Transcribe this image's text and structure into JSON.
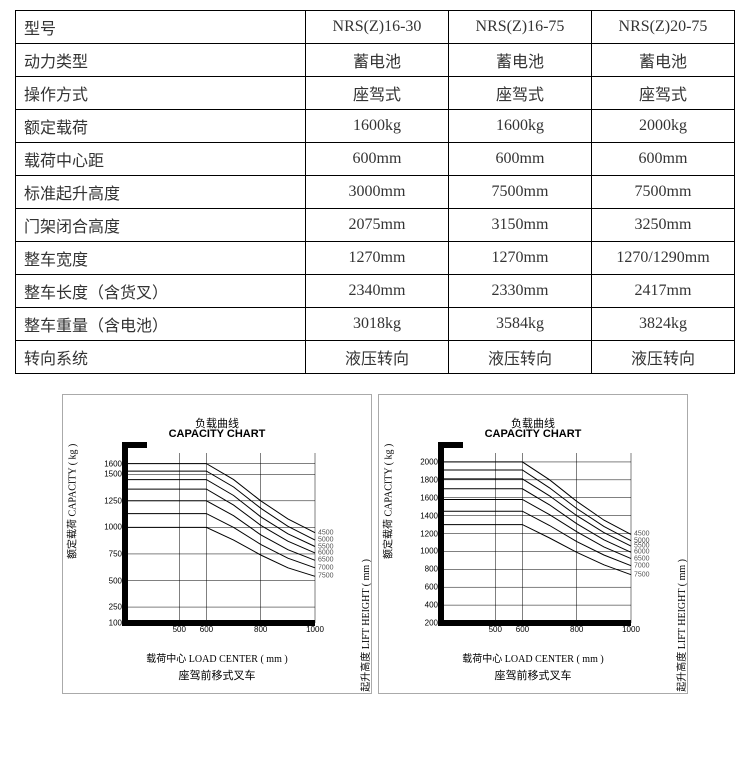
{
  "table": {
    "headers": [
      "型号",
      "NRS(Z)16-30",
      "NRS(Z)16-75",
      "NRS(Z)20-75"
    ],
    "rows": [
      {
        "label": "动力类型",
        "v1": "蓄电池",
        "v2": "蓄电池",
        "v3": "蓄电池"
      },
      {
        "label": "操作方式",
        "v1": "座驾式",
        "v2": "座驾式",
        "v3": "座驾式"
      },
      {
        "label": "额定载荷",
        "v1": "1600kg",
        "v2": "1600kg",
        "v3": "2000kg"
      },
      {
        "label": "载荷中心距",
        "v1": "600mm",
        "v2": "600mm",
        "v3": "600mm"
      },
      {
        "label": "标准起升高度",
        "v1": "3000mm",
        "v2": "7500mm",
        "v3": "7500mm"
      },
      {
        "label": "门架闭合高度",
        "v1": "2075mm",
        "v2": "3150mm",
        "v3": "3250mm"
      },
      {
        "label": "整车宽度",
        "v1": "1270mm",
        "v2": "1270mm",
        "v3": "1270/1290mm"
      },
      {
        "label": "整车长度（含货叉）",
        "v1": "2340mm",
        "v2": "2330mm",
        "v3": "2417mm"
      },
      {
        "label": "整车重量（含电池）",
        "v1": "3018kg",
        "v2": "3584kg",
        "v3": "3824kg"
      },
      {
        "label": "转向系统",
        "v1": "液压转向",
        "v2": "液压转向",
        "v3": "液压转向"
      }
    ]
  },
  "chart_left": {
    "type": "line",
    "title_cn": "负载曲线",
    "title_en": "CAPACITY CHART",
    "y_label": "额定载荷 CAPACITY ( kg )",
    "y2_label": "起升高度 LIFT HEIGHT ( mm )",
    "x_label": "载荷中心 LOAD CENTER ( mm )",
    "footer": "座驾前移式叉车",
    "x_min": 300,
    "x_max": 1000,
    "y_min": 100,
    "y_max": 1700,
    "x_ticks": [
      500,
      600,
      800,
      1000
    ],
    "y_ticks": [
      100,
      250,
      500,
      750,
      1000,
      1250,
      1500,
      1600
    ],
    "series": [
      {
        "label": "4500",
        "pts": [
          [
            300,
            1600
          ],
          [
            600,
            1600
          ],
          [
            700,
            1450
          ],
          [
            800,
            1250
          ],
          [
            900,
            1080
          ],
          [
            1000,
            950
          ]
        ]
      },
      {
        "label": "5000",
        "pts": [
          [
            300,
            1530
          ],
          [
            600,
            1530
          ],
          [
            700,
            1380
          ],
          [
            800,
            1180
          ],
          [
            900,
            1010
          ],
          [
            1000,
            880
          ]
        ]
      },
      {
        "label": "5500",
        "pts": [
          [
            300,
            1450
          ],
          [
            600,
            1450
          ],
          [
            700,
            1300
          ],
          [
            800,
            1100
          ],
          [
            900,
            940
          ],
          [
            1000,
            820
          ]
        ]
      },
      {
        "label": "6000",
        "pts": [
          [
            300,
            1360
          ],
          [
            600,
            1360
          ],
          [
            700,
            1210
          ],
          [
            800,
            1020
          ],
          [
            900,
            870
          ],
          [
            1000,
            760
          ]
        ]
      },
      {
        "label": "6500",
        "pts": [
          [
            300,
            1250
          ],
          [
            600,
            1250
          ],
          [
            700,
            1110
          ],
          [
            800,
            930
          ],
          [
            900,
            790
          ],
          [
            1000,
            690
          ]
        ]
      },
      {
        "label": "7000",
        "pts": [
          [
            300,
            1130
          ],
          [
            600,
            1130
          ],
          [
            700,
            1000
          ],
          [
            800,
            840
          ],
          [
            900,
            710
          ],
          [
            1000,
            620
          ]
        ]
      },
      {
        "label": "7500",
        "pts": [
          [
            300,
            1000
          ],
          [
            600,
            1000
          ],
          [
            700,
            880
          ],
          [
            800,
            740
          ],
          [
            900,
            620
          ],
          [
            1000,
            540
          ]
        ]
      }
    ],
    "line_color": "#000000",
    "grid_color": "#000000",
    "axis_width": 6,
    "background_color": "#ffffff"
  },
  "chart_right": {
    "type": "line",
    "title_cn": "负载曲线",
    "title_en": "CAPACITY CHART",
    "y_label": "额定载荷 CAPACITY ( kg )",
    "y2_label": "起升高度 LIFT HEIGHT ( mm )",
    "x_label": "载荷中心 LOAD CENTER ( mm )",
    "footer": "座驾前移式叉车",
    "x_min": 300,
    "x_max": 1000,
    "y_min": 200,
    "y_max": 2100,
    "x_ticks": [
      500,
      600,
      800,
      1000
    ],
    "y_ticks": [
      200,
      400,
      600,
      800,
      1000,
      1200,
      1400,
      1600,
      1800,
      2000
    ],
    "series": [
      {
        "label": "4500",
        "pts": [
          [
            300,
            2000
          ],
          [
            600,
            2000
          ],
          [
            700,
            1800
          ],
          [
            800,
            1560
          ],
          [
            900,
            1350
          ],
          [
            1000,
            1190
          ]
        ]
      },
      {
        "label": "5000",
        "pts": [
          [
            300,
            1910
          ],
          [
            600,
            1910
          ],
          [
            700,
            1710
          ],
          [
            800,
            1480
          ],
          [
            900,
            1280
          ],
          [
            1000,
            1120
          ]
        ]
      },
      {
        "label": "5500",
        "pts": [
          [
            300,
            1810
          ],
          [
            600,
            1810
          ],
          [
            700,
            1620
          ],
          [
            800,
            1400
          ],
          [
            900,
            1210
          ],
          [
            1000,
            1060
          ]
        ]
      },
      {
        "label": "6000",
        "pts": [
          [
            300,
            1700
          ],
          [
            600,
            1700
          ],
          [
            700,
            1520
          ],
          [
            800,
            1310
          ],
          [
            900,
            1130
          ],
          [
            1000,
            990
          ]
        ]
      },
      {
        "label": "6500",
        "pts": [
          [
            300,
            1580
          ],
          [
            600,
            1580
          ],
          [
            700,
            1410
          ],
          [
            800,
            1220
          ],
          [
            900,
            1050
          ],
          [
            1000,
            920
          ]
        ]
      },
      {
        "label": "7000",
        "pts": [
          [
            300,
            1450
          ],
          [
            600,
            1450
          ],
          [
            700,
            1290
          ],
          [
            800,
            1110
          ],
          [
            900,
            960
          ],
          [
            1000,
            840
          ]
        ]
      },
      {
        "label": "7500",
        "pts": [
          [
            300,
            1300
          ],
          [
            600,
            1300
          ],
          [
            700,
            1150
          ],
          [
            800,
            990
          ],
          [
            900,
            850
          ],
          [
            1000,
            740
          ]
        ]
      }
    ],
    "line_color": "#000000",
    "grid_color": "#000000",
    "axis_width": 6,
    "background_color": "#ffffff"
  }
}
